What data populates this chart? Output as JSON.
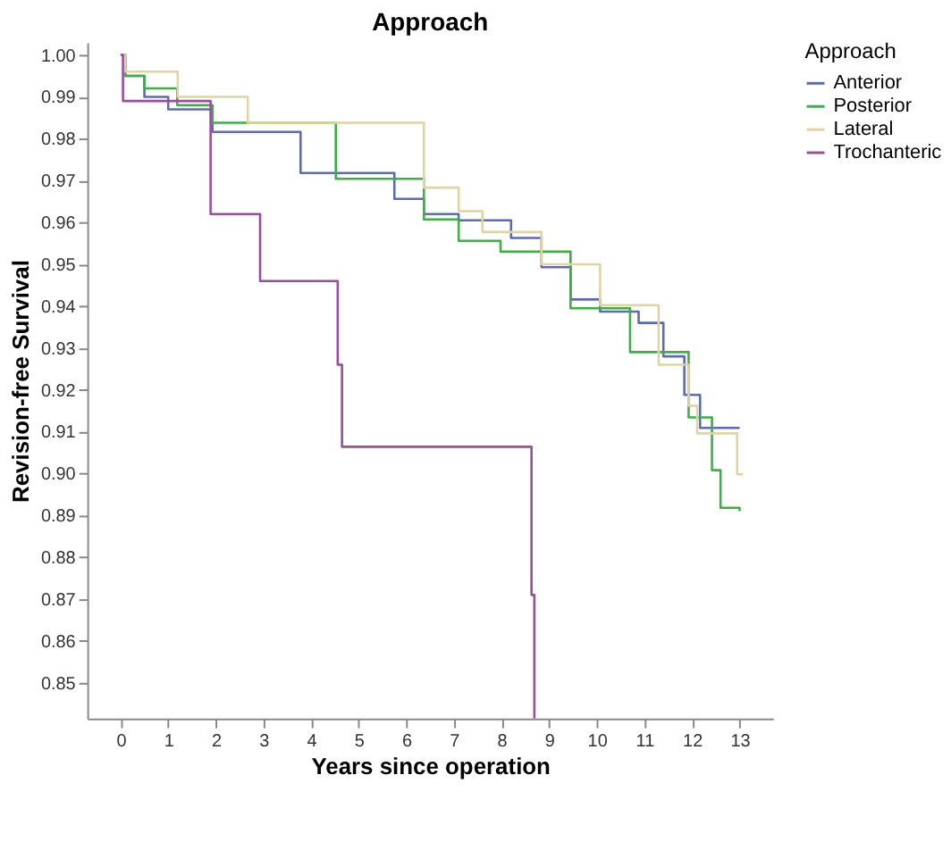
{
  "chart_data": {
    "type": "step",
    "title": "Approach",
    "xlabel": "Years since operation",
    "ylabel": "Revision-free Survival",
    "legend_title": "Approach",
    "legend": "top right",
    "grid": false,
    "marker": "none",
    "line_style": "solid",
    "xlim": [
      -0.7,
      13.7
    ],
    "xticks": [
      0,
      1,
      2,
      3,
      4,
      5,
      6,
      7,
      8,
      9,
      10,
      11,
      12,
      13
    ],
    "ylim": [
      0.8415,
      1.003
    ],
    "yticks": [
      0.85,
      0.86,
      0.87,
      0.88,
      0.89,
      {
        "value": 0.9,
        "label": "0.90"
      },
      0.91,
      0.92,
      0.93,
      0.94,
      0.95,
      0.96,
      0.97,
      0.98,
      0.99,
      {
        "value": 1.0,
        "label": "1.00"
      }
    ],
    "series": [
      {
        "name": "Anterior",
        "color": "#5b6bb5",
        "x": [
          0,
          0.1,
          0.5,
          1.0,
          1.93,
          3.78,
          5.75,
          6.37,
          7.1,
          8.2,
          8.84,
          9.45,
          10.07,
          10.88,
          11.4,
          11.84,
          12.17,
          13.0
        ],
        "values": [
          1.0,
          0.995,
          0.99,
          0.987,
          0.9816,
          0.9718,
          0.9656,
          0.962,
          0.9605,
          0.9563,
          0.9493,
          0.9416,
          0.9387,
          0.936,
          0.928,
          0.9188,
          0.9109,
          0.9109
        ]
      },
      {
        "name": "Posterior",
        "color": "#3cb043",
        "x": [
          0,
          0.1,
          0.5,
          1.19,
          1.93,
          4.52,
          6.37,
          7.1,
          7.98,
          9.45,
          10.7,
          11.93,
          12.42,
          12.6,
          13.0
        ],
        "values": [
          1.0,
          0.995,
          0.992,
          0.988,
          0.9838,
          0.9704,
          0.9607,
          0.9556,
          0.953,
          0.9395,
          0.929,
          0.9134,
          0.9008,
          0.8918,
          0.891
        ]
      },
      {
        "name": "Lateral",
        "color": "#e0d4a0",
        "x": [
          0,
          0.1,
          1.2,
          2.67,
          6.37,
          7.1,
          7.6,
          8.84,
          10.07,
          11.3,
          11.93,
          12.11,
          12.95,
          13.07
        ],
        "values": [
          1.0,
          0.996,
          0.99,
          0.9838,
          0.9683,
          0.9627,
          0.9577,
          0.95,
          0.9402,
          0.926,
          0.9162,
          0.9096,
          0.8998,
          0.8998
        ]
      },
      {
        "name": "Trochanteric",
        "color": "#9a4d9a",
        "x": [
          0,
          0.05,
          1.89,
          2.93,
          4.56,
          4.65,
          8.63,
          8.69
        ],
        "values": [
          1.0,
          0.989,
          0.962,
          0.946,
          0.926,
          0.9064,
          0.871,
          0.8415
        ]
      }
    ]
  }
}
